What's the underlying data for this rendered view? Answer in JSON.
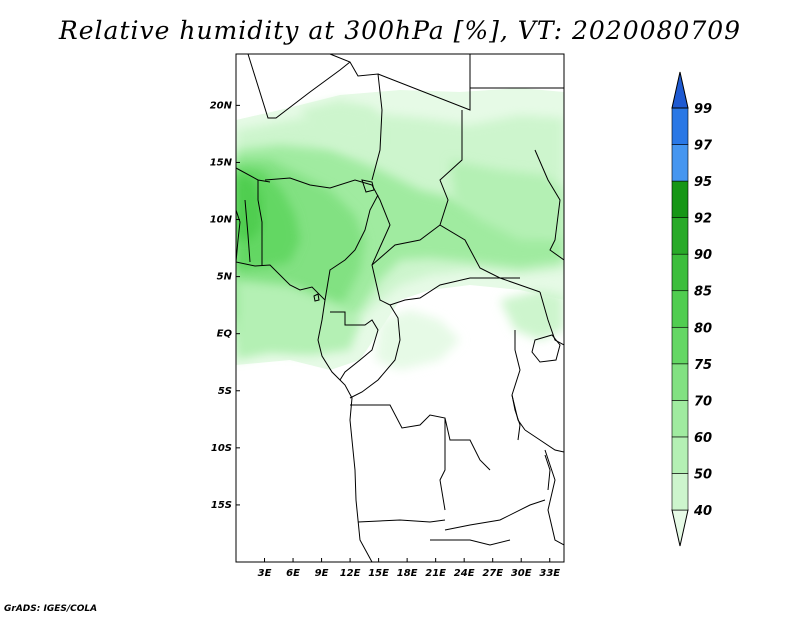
{
  "title": "Relative humidity at 300hPa [%], VT: 2020080709",
  "credit": "GrADS: IGES/COLA",
  "map": {
    "lon_range": [
      0,
      34.5
    ],
    "lat_range": [
      -20,
      24.5
    ],
    "lat_ticks": [
      {
        "value": 20,
        "label": "20N"
      },
      {
        "value": 15,
        "label": "15N"
      },
      {
        "value": 10,
        "label": "10N"
      },
      {
        "value": 5,
        "label": "5N"
      },
      {
        "value": 0,
        "label": "EQ"
      },
      {
        "value": -5,
        "label": "5S"
      },
      {
        "value": -10,
        "label": "10S"
      },
      {
        "value": -15,
        "label": "15S"
      }
    ],
    "lon_ticks": [
      {
        "value": 3,
        "label": "3E"
      },
      {
        "value": 6,
        "label": "6E"
      },
      {
        "value": 9,
        "label": "9E"
      },
      {
        "value": 12,
        "label": "12E"
      },
      {
        "value": 15,
        "label": "15E"
      },
      {
        "value": 18,
        "label": "18E"
      },
      {
        "value": 21,
        "label": "21E"
      },
      {
        "value": 24,
        "label": "24E"
      },
      {
        "value": 27,
        "label": "27E"
      },
      {
        "value": 30,
        "label": "30E"
      },
      {
        "value": 33,
        "label": "33E"
      }
    ]
  },
  "colorbar": {
    "levels": [
      "40",
      "50",
      "60",
      "70",
      "75",
      "80",
      "85",
      "90",
      "92",
      "95",
      "97",
      "99"
    ],
    "colors": [
      "#e6fae6",
      "#cdf5cd",
      "#b4f0b4",
      "#a0eba0",
      "#82e182",
      "#64d764",
      "#50cd50",
      "#3cbe3c",
      "#28aa28",
      "#169616",
      "#4696f0",
      "#2a78e6",
      "#1e5ad2"
    ]
  },
  "colors": {
    "background": "#ffffff",
    "frame": "#000000",
    "boundaries": "#000000"
  }
}
